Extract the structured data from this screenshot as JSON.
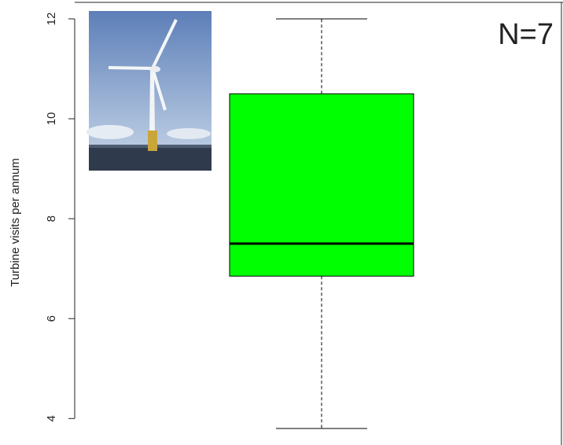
{
  "chart_data": {
    "type": "box",
    "ylabel": "Turbine visits per annum",
    "annotation": "N=7",
    "color": "#00ff00",
    "min": 3.8,
    "q1": 6.85,
    "median": 7.5,
    "q3": 10.5,
    "max": 12,
    "ylim": [
      3.47,
      12.33
    ],
    "yticks": [
      4,
      6,
      8,
      10,
      12
    ]
  }
}
